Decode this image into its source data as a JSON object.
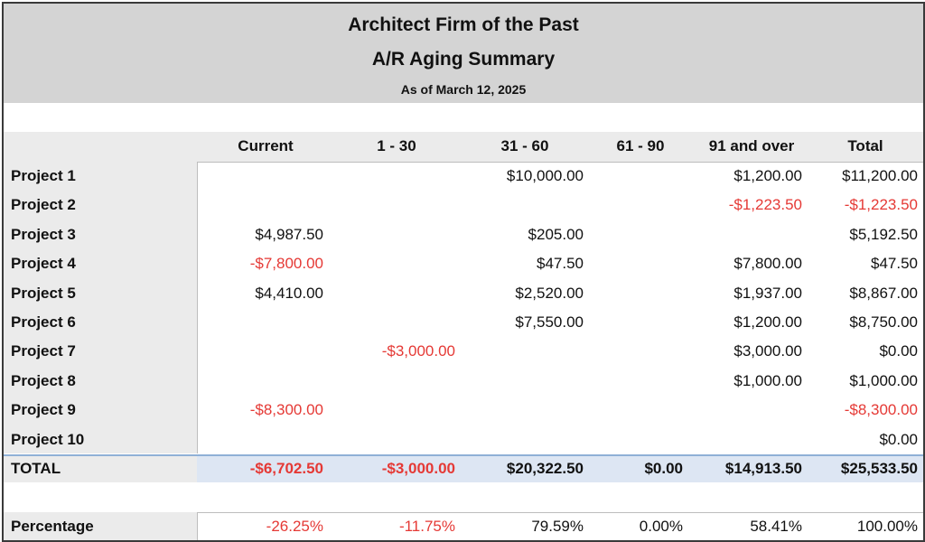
{
  "header": {
    "company": "Architect Firm of the Past",
    "report": "A/R Aging Summary",
    "date": "As of March 12, 2025"
  },
  "columns": [
    "Current",
    "1 - 30",
    "31 - 60",
    "61 - 90",
    "91 and over",
    "Total"
  ],
  "rows": [
    {
      "label": "Project 1",
      "cells": [
        "",
        "",
        "$10,000.00",
        "",
        "$1,200.00",
        "$11,200.00"
      ]
    },
    {
      "label": "Project 2",
      "cells": [
        "",
        "",
        "",
        "",
        "-$1,223.50",
        "-$1,223.50"
      ]
    },
    {
      "label": "Project 3",
      "cells": [
        "$4,987.50",
        "",
        "$205.00",
        "",
        "",
        "$5,192.50"
      ]
    },
    {
      "label": "Project 4",
      "cells": [
        "-$7,800.00",
        "",
        "$47.50",
        "",
        "$7,800.00",
        "$47.50"
      ]
    },
    {
      "label": "Project 5",
      "cells": [
        "$4,410.00",
        "",
        "$2,520.00",
        "",
        "$1,937.00",
        "$8,867.00"
      ]
    },
    {
      "label": "Project 6",
      "cells": [
        "",
        "",
        "$7,550.00",
        "",
        "$1,200.00",
        "$8,750.00"
      ]
    },
    {
      "label": "Project 7",
      "cells": [
        "",
        "-$3,000.00",
        "",
        "",
        "$3,000.00",
        "$0.00"
      ]
    },
    {
      "label": "Project 8",
      "cells": [
        "",
        "",
        "",
        "",
        "$1,000.00",
        "$1,000.00"
      ]
    },
    {
      "label": "Project 9",
      "cells": [
        "-$8,300.00",
        "",
        "",
        "",
        "",
        "-$8,300.00"
      ]
    },
    {
      "label": "Project 10",
      "cells": [
        "",
        "",
        "",
        "",
        "",
        "$0.00"
      ]
    }
  ],
  "total": {
    "label": "TOTAL",
    "cells": [
      "-$6,702.50",
      "-$3,000.00",
      "$20,322.50",
      "$0.00",
      "$14,913.50",
      "$25,533.50"
    ]
  },
  "percentage": {
    "label": "Percentage",
    "cells": [
      "-26.25%",
      "-11.75%",
      "79.59%",
      "0.00%",
      "58.41%",
      "100.00%"
    ]
  },
  "colors": {
    "negative": "#e53935",
    "header_bg": "#d4d4d4",
    "total_bg": "#dde6f3"
  }
}
